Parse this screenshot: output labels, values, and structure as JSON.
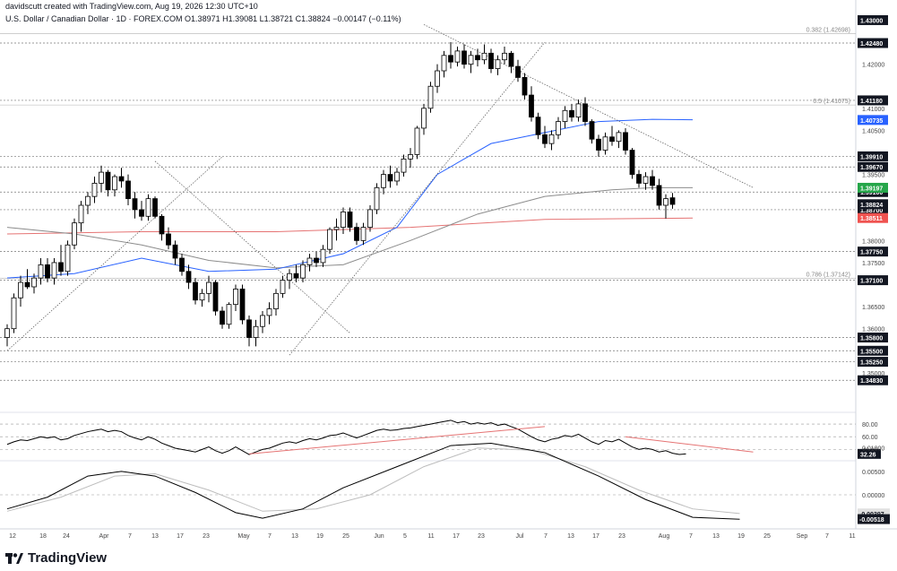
{
  "header": {
    "line1": "davidscutt created with TradingView.com, Aug 19, 2026 12:30 UTC+10",
    "line2": "U.S. Dollar / Canadian Dollar · 1D · FOREX.COM  O1.38971  H1.39081  L1.38721  C1.38824  −0.00147 (−0.11%)"
  },
  "brand": {
    "name": "TradingView"
  },
  "colors": {
    "bull": "#ffffff",
    "bear": "#000000",
    "wick": "#000000",
    "ma_fast": "#2962ff",
    "ma_mid": "#8c8c8c",
    "ma_slow": "#e57373",
    "trendline": "#555555",
    "rsi_trend": "#e57373",
    "tag_dark": "#131722",
    "tag_green": "#26a64a",
    "tag_blue": "#2962ff",
    "tag_red": "#ef5350"
  },
  "chart_data": [
    {
      "type": "candlestick",
      "title": "U.S. Dollar / Canadian Dollar · 1D · FOREX.COM",
      "ylim": [
        1.3455,
        1.4305
      ],
      "x_ticks": [
        "12",
        "18",
        "24",
        "Apr",
        "7",
        "13",
        "17",
        "23",
        "May",
        "7",
        "13",
        "19",
        "25",
        "Jun",
        "5",
        "11",
        "17",
        "23",
        "Jul",
        "7",
        "13",
        "17",
        "23",
        "Aug",
        "7",
        "13",
        "19",
        "25",
        "Sep",
        "7",
        "11"
      ],
      "price_labels": [
        "1.42000",
        "1.41000",
        "1.40500",
        "1.39500",
        "1.38000",
        "1.37500",
        "1.36500",
        "1.36000",
        "1.35000"
      ],
      "levels": [
        {
          "label": "1.43000",
          "value": 1.43,
          "tag": "dark",
          "line": false
        },
        {
          "label": "1.42480",
          "value": 1.4248,
          "tag": "dark",
          "line": true
        },
        {
          "label": "1.41180",
          "value": 1.4118,
          "tag": "dark",
          "line": true
        },
        {
          "label": "1.39910",
          "value": 1.3991,
          "tag": "dark",
          "line": true
        },
        {
          "label": "1.39670",
          "value": 1.3967,
          "tag": "dark",
          "line": true
        },
        {
          "label": "1.39100",
          "value": 1.391,
          "tag": "dark",
          "line": true
        },
        {
          "label": "1.38700",
          "value": 1.387,
          "tag": "dark",
          "line": true
        },
        {
          "label": "1.37750",
          "value": 1.3775,
          "tag": "dark",
          "line": true
        },
        {
          "label": "1.37100",
          "value": 1.371,
          "tag": "dark",
          "line": true
        },
        {
          "label": "1.35800",
          "value": 1.358,
          "tag": "dark",
          "line": true
        },
        {
          "label": "1.35500",
          "value": 1.355,
          "tag": "dark",
          "line": true
        },
        {
          "label": "1.35250",
          "value": 1.3525,
          "tag": "dark",
          "line": true
        },
        {
          "label": "1.34830",
          "value": 1.3483,
          "tag": "dark",
          "line": true
        }
      ],
      "value_tags": [
        {
          "label": "1.40735",
          "value": 1.40735,
          "tag": "blue"
        },
        {
          "label": "1.39197",
          "value": 1.39197,
          "tag": "green"
        },
        {
          "label": "1.38824",
          "value": 1.38824,
          "tag": "dark"
        },
        {
          "label": "1.38511",
          "value": 1.38511,
          "tag": "red"
        }
      ],
      "fib_levels": [
        {
          "label": "0.382 (1.42698)",
          "value": 1.42698
        },
        {
          "label": "0.5 (1.41075)",
          "value": 1.41075
        },
        {
          "label": "0.786 (1.37142)",
          "value": 1.37142
        }
      ],
      "candles": [
        [
          1.358,
          1.361,
          1.356,
          1.36
        ],
        [
          1.36,
          1.368,
          1.359,
          1.367
        ],
        [
          1.367,
          1.372,
          1.365,
          1.3705
        ],
        [
          1.3705,
          1.3735,
          1.369,
          1.3695
        ],
        [
          1.3695,
          1.3725,
          1.368,
          1.3715
        ],
        [
          1.3715,
          1.376,
          1.37,
          1.3745
        ],
        [
          1.3745,
          1.376,
          1.3705,
          1.3715
        ],
        [
          1.3715,
          1.376,
          1.37,
          1.375
        ],
        [
          1.375,
          1.379,
          1.372,
          1.373
        ],
        [
          1.373,
          1.38,
          1.372,
          1.379
        ],
        [
          1.379,
          1.385,
          1.378,
          1.384
        ],
        [
          1.384,
          1.389,
          1.382,
          1.388
        ],
        [
          1.388,
          1.391,
          1.386,
          1.39
        ],
        [
          1.39,
          1.3945,
          1.3885,
          1.393
        ],
        [
          1.393,
          1.397,
          1.391,
          1.3955
        ],
        [
          1.3955,
          1.396,
          1.39,
          1.3915
        ],
        [
          1.3915,
          1.395,
          1.39,
          1.3945
        ],
        [
          1.3945,
          1.3965,
          1.392,
          1.3935
        ],
        [
          1.3935,
          1.395,
          1.388,
          1.3895
        ],
        [
          1.3895,
          1.391,
          1.385,
          1.387
        ],
        [
          1.387,
          1.389,
          1.3845,
          1.3855
        ],
        [
          1.3855,
          1.3905,
          1.3845,
          1.3895
        ],
        [
          1.3895,
          1.39,
          1.385,
          1.3855
        ],
        [
          1.3855,
          1.386,
          1.38,
          1.3815
        ],
        [
          1.3815,
          1.383,
          1.378,
          1.379
        ],
        [
          1.379,
          1.38,
          1.3745,
          1.376
        ],
        [
          1.376,
          1.377,
          1.372,
          1.373
        ],
        [
          1.373,
          1.3745,
          1.369,
          1.3705
        ],
        [
          1.3705,
          1.3715,
          1.3655,
          1.3665
        ],
        [
          1.3665,
          1.369,
          1.365,
          1.368
        ],
        [
          1.368,
          1.372,
          1.366,
          1.3705
        ],
        [
          1.3705,
          1.371,
          1.363,
          1.364
        ],
        [
          1.364,
          1.365,
          1.36,
          1.361
        ],
        [
          1.361,
          1.366,
          1.36,
          1.3655
        ],
        [
          1.3655,
          1.37,
          1.364,
          1.369
        ],
        [
          1.369,
          1.37,
          1.361,
          1.362
        ],
        [
          1.362,
          1.363,
          1.356,
          1.358
        ],
        [
          1.358,
          1.362,
          1.356,
          1.3605
        ],
        [
          1.3605,
          1.364,
          1.359,
          1.363
        ],
        [
          1.363,
          1.366,
          1.361,
          1.3645
        ],
        [
          1.3645,
          1.369,
          1.363,
          1.368
        ],
        [
          1.368,
          1.372,
          1.367,
          1.371
        ],
        [
          1.371,
          1.3735,
          1.369,
          1.3725
        ],
        [
          1.3725,
          1.3745,
          1.3705,
          1.3715
        ],
        [
          1.3715,
          1.3755,
          1.3705,
          1.3745
        ],
        [
          1.3745,
          1.377,
          1.373,
          1.376
        ],
        [
          1.376,
          1.3775,
          1.374,
          1.375
        ],
        [
          1.375,
          1.379,
          1.374,
          1.378
        ],
        [
          1.378,
          1.383,
          1.377,
          1.3825
        ],
        [
          1.3825,
          1.385,
          1.38,
          1.383
        ],
        [
          1.383,
          1.3875,
          1.3815,
          1.3865
        ],
        [
          1.3865,
          1.3875,
          1.382,
          1.383
        ],
        [
          1.383,
          1.384,
          1.379,
          1.38
        ],
        [
          1.38,
          1.384,
          1.379,
          1.383
        ],
        [
          1.383,
          1.388,
          1.382,
          1.387
        ],
        [
          1.387,
          1.393,
          1.386,
          1.392
        ],
        [
          1.392,
          1.396,
          1.3905,
          1.395
        ],
        [
          1.395,
          1.397,
          1.392,
          1.3935
        ],
        [
          1.3935,
          1.3965,
          1.3925,
          1.3955
        ],
        [
          1.3955,
          1.3995,
          1.3945,
          1.3985
        ],
        [
          1.3985,
          1.401,
          1.3965,
          1.3995
        ],
        [
          1.3995,
          1.406,
          1.3985,
          1.4055
        ],
        [
          1.4055,
          1.411,
          1.404,
          1.41
        ],
        [
          1.41,
          1.416,
          1.409,
          1.415
        ],
        [
          1.415,
          1.42,
          1.4135,
          1.4185
        ],
        [
          1.4185,
          1.423,
          1.417,
          1.422
        ],
        [
          1.422,
          1.425,
          1.419,
          1.4205
        ],
        [
          1.4205,
          1.424,
          1.4195,
          1.423
        ],
        [
          1.423,
          1.4245,
          1.419,
          1.42
        ],
        [
          1.42,
          1.423,
          1.418,
          1.422
        ],
        [
          1.422,
          1.4235,
          1.4195,
          1.421
        ],
        [
          1.421,
          1.4245,
          1.42,
          1.4225
        ],
        [
          1.4225,
          1.4235,
          1.418,
          1.419
        ],
        [
          1.419,
          1.422,
          1.4175,
          1.421
        ],
        [
          1.421,
          1.424,
          1.42,
          1.4225
        ],
        [
          1.4225,
          1.423,
          1.418,
          1.4195
        ],
        [
          1.4195,
          1.421,
          1.416,
          1.417
        ],
        [
          1.417,
          1.418,
          1.412,
          1.413
        ],
        [
          1.413,
          1.415,
          1.407,
          1.408
        ],
        [
          1.408,
          1.409,
          1.403,
          1.404
        ],
        [
          1.404,
          1.406,
          1.401,
          1.402
        ],
        [
          1.402,
          1.405,
          1.4005,
          1.404
        ],
        [
          1.404,
          1.408,
          1.403,
          1.407
        ],
        [
          1.407,
          1.4105,
          1.4055,
          1.4095
        ],
        [
          1.4095,
          1.411,
          1.407,
          1.408
        ],
        [
          1.408,
          1.412,
          1.407,
          1.411
        ],
        [
          1.411,
          1.4125,
          1.406,
          1.407
        ],
        [
          1.407,
          1.4075,
          1.402,
          1.403
        ],
        [
          1.403,
          1.404,
          1.399,
          1.4005
        ],
        [
          1.4005,
          1.4045,
          1.3995,
          1.4035
        ],
        [
          1.4035,
          1.406,
          1.4015,
          1.4025
        ],
        [
          1.4025,
          1.405,
          1.401,
          1.4045
        ],
        [
          1.4045,
          1.4055,
          1.3995,
          1.4005
        ],
        [
          1.4005,
          1.401,
          1.394,
          1.395
        ],
        [
          1.395,
          1.396,
          1.392,
          1.393
        ],
        [
          1.393,
          1.3955,
          1.3915,
          1.3945
        ],
        [
          1.3945,
          1.396,
          1.3915,
          1.3925
        ],
        [
          1.3925,
          1.394,
          1.387,
          1.388
        ],
        [
          1.388,
          1.3905,
          1.385,
          1.3895
        ],
        [
          1.3897,
          1.3908,
          1.3872,
          1.3882
        ]
      ],
      "ma_fast": [
        [
          0,
          1.3715
        ],
        [
          10,
          1.3725
        ],
        [
          20,
          1.376
        ],
        [
          30,
          1.373
        ],
        [
          40,
          1.3735
        ],
        [
          50,
          1.377
        ],
        [
          58,
          1.383
        ],
        [
          64,
          1.395
        ],
        [
          72,
          1.402
        ],
        [
          80,
          1.4045
        ],
        [
          88,
          1.407
        ],
        [
          96,
          1.4075
        ],
        [
          102,
          1.4074
        ]
      ],
      "ma_mid": [
        [
          0,
          1.383
        ],
        [
          10,
          1.3815
        ],
        [
          20,
          1.379
        ],
        [
          30,
          1.3755
        ],
        [
          40,
          1.3738
        ],
        [
          50,
          1.3745
        ],
        [
          60,
          1.38
        ],
        [
          70,
          1.386
        ],
        [
          80,
          1.39
        ],
        [
          90,
          1.3915
        ],
        [
          96,
          1.392
        ],
        [
          102,
          1.392
        ]
      ],
      "ma_slow": [
        [
          0,
          1.3815
        ],
        [
          20,
          1.382
        ],
        [
          40,
          1.382
        ],
        [
          60,
          1.383
        ],
        [
          80,
          1.3848
        ],
        [
          102,
          1.3851
        ]
      ],
      "trendlines": [
        [
          [
            0,
            1.355
          ],
          [
            32,
            1.399
          ]
        ],
        [
          [
            22,
            1.398
          ],
          [
            51,
            1.359
          ]
        ],
        [
          [
            42,
            1.354
          ],
          [
            80,
            1.425
          ]
        ],
        [
          [
            62,
            1.429
          ],
          [
            111,
            1.392
          ]
        ]
      ],
      "rsi": {
        "levels": [
          {
            "label": "80.00",
            "value": 80
          },
          {
            "label": "60.00",
            "value": 60
          },
          {
            "label": "40.00",
            "value": 40
          }
        ],
        "current_label": "32.26",
        "values": [
          48,
          52,
          55,
          54,
          57,
          60,
          58,
          60,
          55,
          57,
          62,
          65,
          68,
          70,
          72,
          68,
          70,
          68,
          62,
          58,
          55,
          60,
          56,
          50,
          46,
          42,
          40,
          38,
          36,
          40,
          44,
          38,
          34,
          38,
          44,
          38,
          32,
          36,
          40,
          42,
          46,
          50,
          52,
          50,
          54,
          57,
          55,
          58,
          62,
          63,
          66,
          62,
          58,
          62,
          66,
          70,
          72,
          70,
          71,
          73,
          74,
          76,
          78,
          80,
          82,
          84,
          86,
          82,
          84,
          80,
          82,
          80,
          82,
          78,
          80,
          76,
          72,
          66,
          60,
          55,
          52,
          56,
          58,
          62,
          60,
          64,
          58,
          52,
          48,
          54,
          52,
          56,
          50,
          44,
          40,
          42,
          40,
          36,
          38,
          34,
          32,
          33
        ],
        "trendlines": [
          [
            [
              36,
              33
            ],
            [
              80,
              76
            ]
          ],
          [
            [
              92,
              60
            ],
            [
              111,
              36
            ]
          ]
        ]
      },
      "macd": {
        "levels": [
          {
            "label": "0.01000",
            "value": 0.01
          },
          {
            "label": "0.00500",
            "value": 0.005
          },
          {
            "label": "0.00000",
            "value": 0.0
          },
          {
            "label": "-0.00397",
            "value": -0.00397
          },
          {
            "label": "-0.00518",
            "value": -0.00518
          }
        ],
        "macd_line": [
          [
            0,
            -0.003
          ],
          [
            6,
            -0.0005
          ],
          [
            12,
            0.004
          ],
          [
            17,
            0.005
          ],
          [
            22,
            0.004
          ],
          [
            28,
            0.0005
          ],
          [
            34,
            -0.0038
          ],
          [
            38,
            -0.005
          ],
          [
            44,
            -0.003
          ],
          [
            50,
            0.0015
          ],
          [
            58,
            0.006
          ],
          [
            66,
            0.0105
          ],
          [
            72,
            0.011
          ],
          [
            80,
            0.009
          ],
          [
            88,
            0.004
          ],
          [
            95,
            -0.001
          ],
          [
            102,
            -0.0048
          ],
          [
            109,
            -0.0052
          ]
        ],
        "signal_line": [
          [
            0,
            -0.0035
          ],
          [
            8,
            -0.0005
          ],
          [
            16,
            0.004
          ],
          [
            22,
            0.0045
          ],
          [
            30,
            0.001
          ],
          [
            38,
            -0.0035
          ],
          [
            46,
            -0.003
          ],
          [
            54,
            0.0
          ],
          [
            62,
            0.006
          ],
          [
            70,
            0.01
          ],
          [
            78,
            0.0095
          ],
          [
            86,
            0.006
          ],
          [
            94,
            0.001
          ],
          [
            102,
            -0.003
          ],
          [
            109,
            -0.004
          ]
        ]
      }
    }
  ]
}
